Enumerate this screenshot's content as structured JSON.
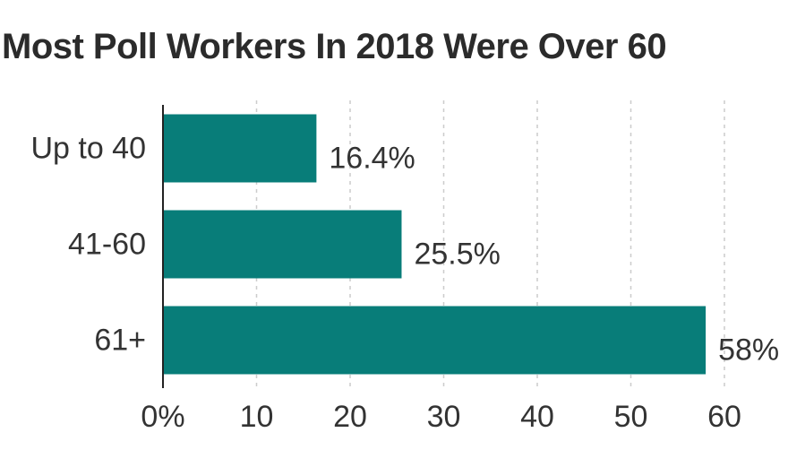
{
  "chart_data": {
    "type": "bar",
    "orientation": "horizontal",
    "title": "Most Poll Workers In 2018 Were Over 60",
    "categories": [
      "Up to 40",
      "41-60",
      "61+"
    ],
    "values": [
      16.4,
      25.5,
      58
    ],
    "value_labels": [
      "16.4%",
      "25.5%",
      "58%"
    ],
    "xlim": [
      0,
      60
    ],
    "x_ticks": [
      0,
      10,
      20,
      30,
      40,
      50,
      60
    ],
    "x_tick_labels": [
      "0%",
      "10",
      "20",
      "30",
      "40",
      "50",
      "60"
    ],
    "grid": "vertical dashed",
    "bar_color": "#087d79",
    "grid_color": "#cccccc"
  }
}
